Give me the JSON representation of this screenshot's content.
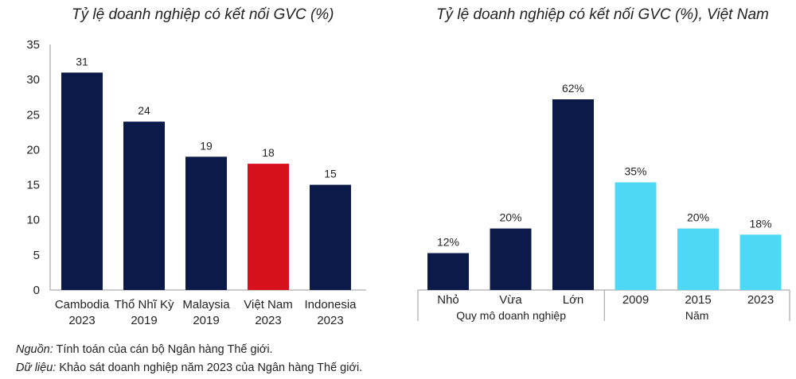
{
  "chart_data": [
    {
      "type": "bar",
      "title": "Tỷ lệ doanh nghiệp có kết nối GVC  (%)",
      "categories": [
        [
          "Cambodia",
          "2023"
        ],
        [
          "Thổ Nhĩ Kỳ",
          "2019"
        ],
        [
          "Malaysia",
          "2019"
        ],
        [
          "Việt Nam",
          "2023"
        ],
        [
          "Indonesia",
          "2023"
        ]
      ],
      "values": [
        31,
        24,
        19,
        18,
        15
      ],
      "value_labels": [
        "31",
        "24",
        "19",
        "18",
        "15"
      ],
      "colors": [
        "#0c1a4a",
        "#0c1a4a",
        "#0c1a4a",
        "#d7101e",
        "#0c1a4a"
      ],
      "ylim": [
        0,
        35
      ],
      "yticks": [
        "0",
        "5",
        "10",
        "15",
        "20",
        "25",
        "30",
        "35"
      ],
      "grid": false
    },
    {
      "type": "bar",
      "title": "Tỷ lệ doanh nghiệp có kết nối GVC (%), Việt Nam",
      "categories": [
        "Nhỏ",
        "Vừa",
        "Lớn",
        "2009",
        "2015",
        "2023"
      ],
      "values": [
        12,
        20,
        62,
        35,
        20,
        18
      ],
      "value_labels": [
        "12%",
        "20%",
        "62%",
        "35%",
        "20%",
        "18%"
      ],
      "colors": [
        "#0c1a4a",
        "#0c1a4a",
        "#0c1a4a",
        "#4dd8f5",
        "#4dd8f5",
        "#4dd8f5"
      ],
      "groups": [
        {
          "label": "Quy mô doanh nghiệp",
          "size": 3
        },
        {
          "label": "Năm",
          "size": 3
        }
      ],
      "ylim": [
        0,
        70
      ],
      "grid": false
    }
  ],
  "notes": {
    "source_label": "Nguồn:",
    "source_text": " Tính toán của cán bộ Ngân hàng Thế giới.",
    "data_label": "Dữ liệu:",
    "data_text": " Khảo sát doanh nghiệp năm 2023 của Ngân hàng Thế giới."
  }
}
